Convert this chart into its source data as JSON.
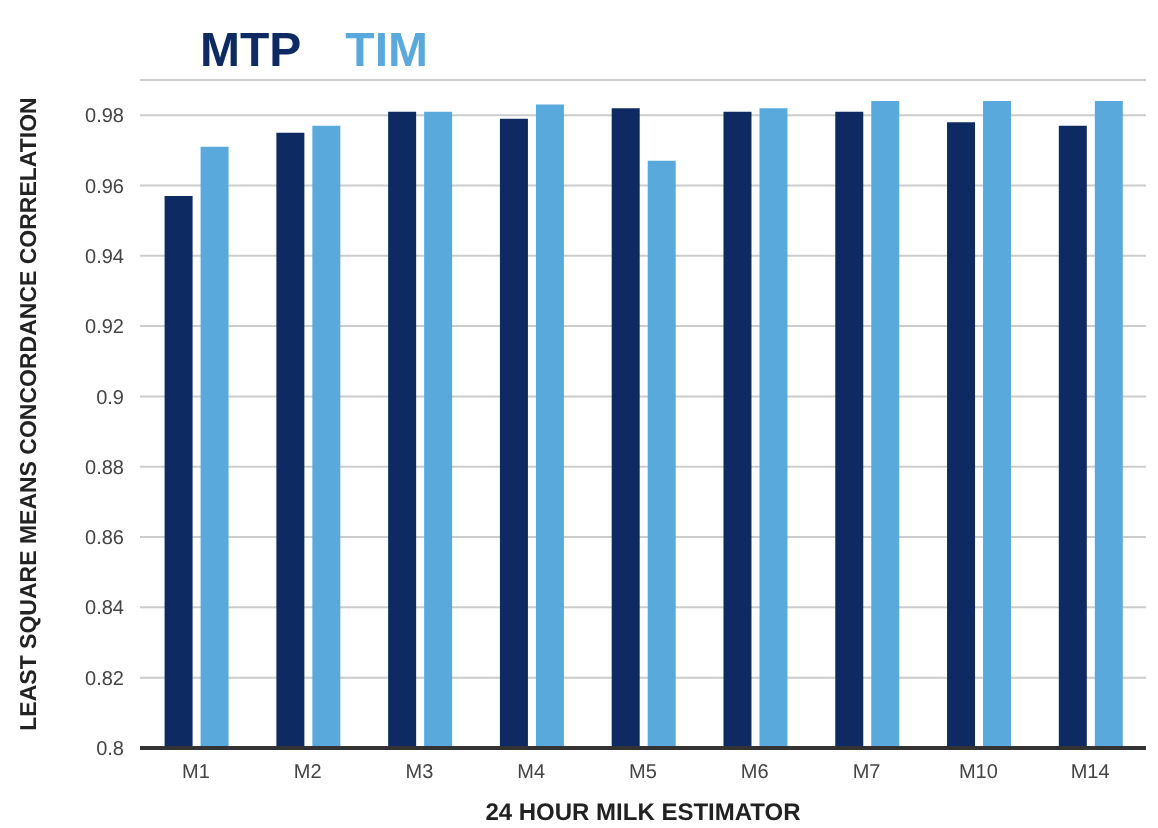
{
  "chart_data": {
    "type": "bar",
    "xlabel": "24 HOUR MILK ESTIMATOR",
    "ylabel": "LEAST SQUARE MEANS CONCORDANCE CORRELATION",
    "categories": [
      "M1",
      "M2",
      "M3",
      "M4",
      "M5",
      "M6",
      "M7",
      "M10",
      "M14"
    ],
    "series": [
      {
        "name": "MTP",
        "color": "#0d2a63",
        "values": [
          0.957,
          0.975,
          0.981,
          0.979,
          0.982,
          0.981,
          0.981,
          0.978,
          0.977
        ]
      },
      {
        "name": "TIM",
        "color": "#5aa9dc",
        "values": [
          0.971,
          0.977,
          0.981,
          0.983,
          0.967,
          0.982,
          0.984,
          0.984,
          0.984
        ]
      }
    ],
    "ylim": [
      0.8,
      0.99
    ],
    "yticks": [
      0.8,
      0.82,
      0.84,
      0.86,
      0.88,
      0.9,
      0.92,
      0.94,
      0.96,
      0.98
    ],
    "grid": "y",
    "legend": "top left"
  }
}
